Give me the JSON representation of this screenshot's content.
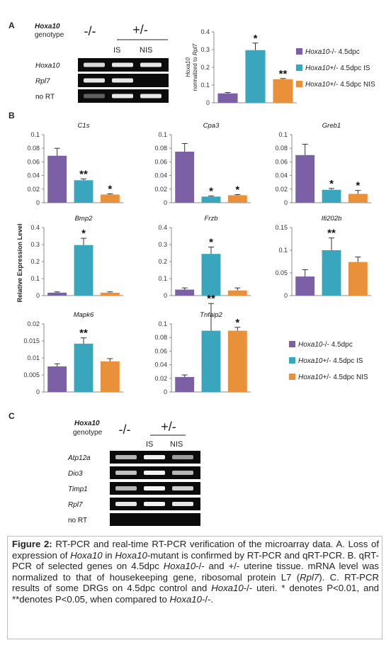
{
  "panel_labels": {
    "a": "A",
    "b": "B",
    "c": "C"
  },
  "gel_a": {
    "gene_label": "Hoxa10",
    "genotype_label": "genotype",
    "genotype_ko": "-/-",
    "genotype_het": "+/-",
    "lane_is": "IS",
    "lane_nis": "NIS",
    "rows": [
      "Hoxa10",
      "Rpl7",
      "no RT"
    ]
  },
  "gel_c": {
    "gene_label": "Hoxa10",
    "genotype_label": "genotype",
    "genotype_ko": "-/-",
    "genotype_het": "+/-",
    "lane_is": "IS",
    "lane_nis": "NIS",
    "rows": [
      "Atp12a",
      "Dio3",
      "Timp1",
      "Rpl7",
      "no RT"
    ]
  },
  "legend_a": [
    "Hoxa10-/- 4.5dpc",
    "Hoxa10+/- 4.5dpc IS",
    "Hoxa10+/- 4.5dpc NIS"
  ],
  "legend_b": [
    "Hoxa10-/- 4.5dpc",
    "Hoxa10+/- 4.5dpc IS",
    "Hoxa10+/- 4.5dpc NIS"
  ],
  "colors": {
    "ko": "#7b60a6",
    "is": "#3aa6be",
    "nis": "#e8913a"
  },
  "shared_ylabel_b": "Relative Expression Level",
  "chart_data": [
    {
      "id": "A",
      "type": "bar",
      "title": "",
      "ylabel": "Hoxa10 normalized to Rpl7",
      "ylim": [
        0,
        0.4
      ],
      "ticks": [
        "0",
        "0.1",
        "0.2",
        "0.3",
        "0.4"
      ],
      "values": [
        0.053,
        0.297,
        0.133
      ],
      "errors": [
        0.005,
        0.04,
        0.004
      ],
      "sig": [
        "",
        "*",
        "**"
      ]
    },
    {
      "id": "C1s",
      "type": "bar",
      "title": "C1s",
      "ylim": [
        0,
        0.1
      ],
      "ticks": [
        "0",
        "0.02",
        "0.04",
        "0.06",
        "0.08",
        "0.1"
      ],
      "values": [
        0.069,
        0.033,
        0.012
      ],
      "errors": [
        0.011,
        0.002,
        0.001
      ],
      "sig": [
        "",
        "**",
        "*"
      ]
    },
    {
      "id": "Cpa3",
      "type": "bar",
      "title": "Cpa3",
      "ylim": [
        0,
        0.1
      ],
      "ticks": [
        "0",
        "0.02",
        "0.04",
        "0.06",
        "0.08",
        "0.1"
      ],
      "values": [
        0.075,
        0.009,
        0.011
      ],
      "errors": [
        0.012,
        0.001,
        0.001
      ],
      "sig": [
        "",
        "*",
        "*"
      ]
    },
    {
      "id": "Greb1",
      "type": "bar",
      "title": "Greb1",
      "ylim": [
        0,
        0.1
      ],
      "ticks": [
        "0",
        "0.02",
        "0.04",
        "0.06",
        "0.08",
        "0.1"
      ],
      "values": [
        0.07,
        0.019,
        0.013
      ],
      "errors": [
        0.016,
        0.002,
        0.005
      ],
      "sig": [
        "",
        "*",
        "*"
      ]
    },
    {
      "id": "Bmp2",
      "type": "bar",
      "title": "Bmp2",
      "ylim": [
        0,
        0.4
      ],
      "ticks": [
        "0",
        "0.1",
        "0.2",
        "0.3",
        "0.4"
      ],
      "values": [
        0.017,
        0.297,
        0.017
      ],
      "errors": [
        0.005,
        0.04,
        0.005
      ],
      "sig": [
        "",
        "*",
        ""
      ]
    },
    {
      "id": "Frzb",
      "type": "bar",
      "title": "Frzb",
      "ylim": [
        0,
        0.4
      ],
      "ticks": [
        "0",
        "0.1",
        "0.2",
        "0.3",
        "0.4"
      ],
      "values": [
        0.035,
        0.245,
        0.03
      ],
      "errors": [
        0.01,
        0.04,
        0.015
      ],
      "sig": [
        "",
        "*",
        ""
      ]
    },
    {
      "id": "Ifi202b",
      "type": "bar",
      "title": "Ifi202b",
      "ylim": [
        0,
        0.15
      ],
      "ticks": [
        "0",
        "0.05",
        "0.1",
        "0.15"
      ],
      "values": [
        0.042,
        0.1,
        0.074
      ],
      "errors": [
        0.015,
        0.027,
        0.011
      ],
      "sig": [
        "",
        "**",
        ""
      ]
    },
    {
      "id": "Mapk6",
      "type": "bar",
      "title": "Mapk6",
      "ylim": [
        0,
        0.02
      ],
      "ticks": [
        "0",
        "0.005",
        "0.01",
        "0.015",
        "0.02"
      ],
      "values": [
        0.0075,
        0.0142,
        0.009
      ],
      "errors": [
        0.0008,
        0.0017,
        0.0008
      ],
      "sig": [
        "",
        "**",
        ""
      ]
    },
    {
      "id": "Tnfaip2",
      "type": "bar",
      "title": "Tnfaip2",
      "ylim": [
        0,
        0.1
      ],
      "ticks": [
        "0",
        "0.02",
        "0.04",
        "0.06",
        "0.08",
        "0.1"
      ],
      "values": [
        0.022,
        0.09,
        0.09
      ],
      "errors": [
        0.003,
        0.04,
        0.005
      ],
      "sig": [
        "",
        "**",
        "*"
      ]
    }
  ],
  "caption_html": "<b>Figure 2:</b> RT-PCR and real-time RT-PCR verification of the microarray data. A. Loss of expression of <i>Hoxa10</i> in <i>Hoxa10</i>-mutant is confirmed by RT-PCR and qRT-PCR. B. qRT-PCR of selected genes on 4.5dpc <i>Hoxa10</i>-/- and +/- uterine tissue. mRNA level was normalized to that of housekeeping gene, ribosomal protein L7 (<i>Rpl7</i>). C. RT-PCR results of some DRGs on 4.5dpc control and <i>Hoxa10</i>-/- uteri. * denotes P&lt;0.01, and **denotes P&lt;0.05, when compared to <i>Hoxa10</i>-/-."
}
